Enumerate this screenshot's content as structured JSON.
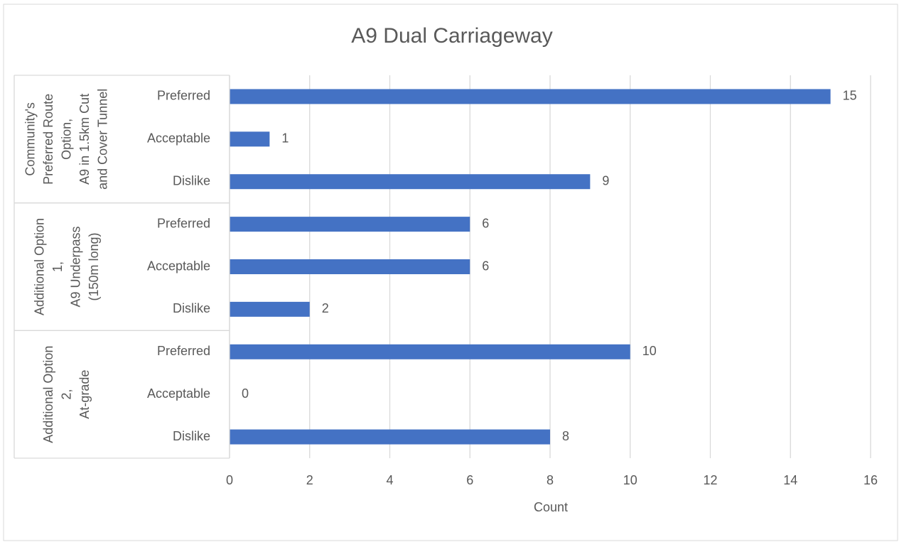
{
  "chart_data": {
    "type": "bar",
    "orientation": "horizontal",
    "title": "A9 Dual Carriageway",
    "x_label": "Count",
    "color": "#4472c4",
    "grid": true,
    "xlim": [
      0,
      16
    ],
    "xticks": [
      0,
      2,
      4,
      6,
      8,
      10,
      12,
      14,
      16
    ],
    "groups": [
      {
        "lines": [
          "Community's",
          "Preferred Route",
          "Option,",
          "A9 in 1.5km Cut",
          "and Cover Tunnel"
        ],
        "categories": [
          "Preferred",
          "Acceptable",
          "Dislike"
        ],
        "values": [
          15,
          1,
          9
        ]
      },
      {
        "lines": [
          "Additional Option",
          "1,",
          "A9 Underpass",
          "(150m long)"
        ],
        "categories": [
          "Preferred",
          "Acceptable",
          "Dislike"
        ],
        "values": [
          6,
          6,
          2
        ]
      },
      {
        "lines": [
          "Additional Option",
          "2,",
          "At-grade"
        ],
        "categories": [
          "Preferred",
          "Acceptable",
          "Dislike"
        ],
        "values": [
          10,
          0,
          8
        ]
      }
    ]
  }
}
